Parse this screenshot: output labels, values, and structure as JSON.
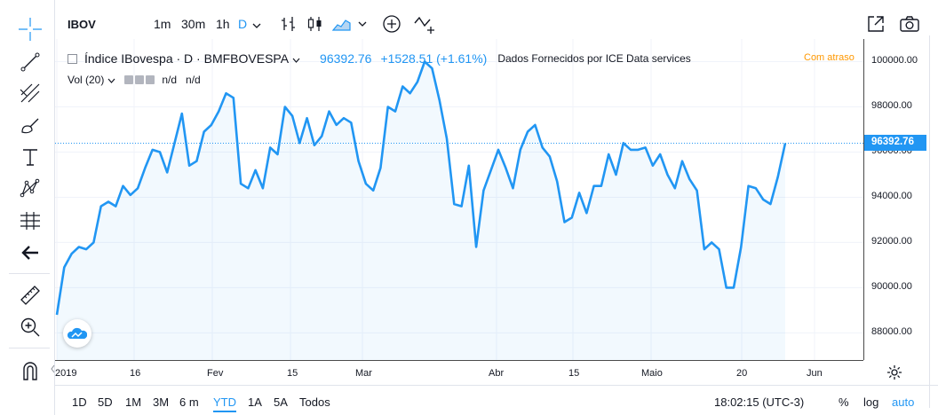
{
  "toolbar": {
    "symbol": "IBOV",
    "timeframes": [
      "1m",
      "30m",
      "1h",
      "D"
    ],
    "active_timeframe": "D"
  },
  "legend": {
    "title": "Índice IBovespa · D · BMFBOVESPA",
    "price": "96392.76",
    "change": "+1528.51 (+1.61%)",
    "source": "Dados Fornecidos por ICE Data services",
    "delay": "Com atraso",
    "vol_label": "Vol (20)",
    "vol_values": [
      "n/d",
      "n/d"
    ]
  },
  "chart_data": {
    "type": "area",
    "title": "Índice IBovespa · D · BMFBOVESPA",
    "ylim": [
      86800,
      101000
    ],
    "yticks": [
      88000,
      90000,
      92000,
      94000,
      96000,
      98000,
      100000
    ],
    "ytick_labels": [
      "88000.00",
      "90000.00",
      "92000.00",
      "94000.00",
      "96000.00",
      "98000.00",
      "100000.00"
    ],
    "xtick_labels": [
      "2019",
      "16",
      "Fev",
      "15",
      "Mar",
      "Abr",
      "15",
      "Maio",
      "20",
      "Jun"
    ],
    "last_price": 96392.76,
    "last_price_label": "96392.76",
    "color": "#2196f3",
    "series": [
      {
        "values": [
          88800,
          90900,
          91500,
          91800,
          91700,
          92000,
          93600,
          93800,
          93600,
          94500,
          94100,
          94400,
          95300,
          96100,
          96000,
          95100,
          96400,
          97700,
          95400,
          95600,
          96900,
          97200,
          97800,
          98600,
          98400,
          94600,
          94400,
          95200,
          94400,
          96200,
          95900,
          98000,
          97600,
          96400,
          97500,
          96300,
          96700,
          97800,
          97200,
          97500,
          97300,
          95600,
          94600,
          94300,
          95300,
          98000,
          97800,
          98900,
          98600,
          99100,
          100000,
          99700,
          98300,
          96600,
          93700,
          93600,
          95400,
          91800,
          94300,
          95200,
          96100,
          95300,
          94400,
          96100,
          96900,
          97200,
          96200,
          95800,
          94700,
          92900,
          93100,
          94200,
          93300,
          94500,
          94500,
          95900,
          95000,
          96400,
          96100,
          96100,
          96200,
          95400,
          95900,
          95000,
          94400,
          95600,
          94800,
          94300,
          91700,
          92000,
          91700,
          90000,
          90000,
          91800,
          94500,
          94400,
          93900,
          93700,
          94900,
          96390
        ]
      }
    ]
  },
  "ranges": [
    "1D",
    "5D",
    "1M",
    "3M",
    "6 m",
    "YTD",
    "1A",
    "5A",
    "Todos"
  ],
  "active_range": "YTD",
  "status": {
    "time": "18:02:15 (UTC-3)",
    "percent": "%",
    "log": "log",
    "auto": "auto"
  }
}
